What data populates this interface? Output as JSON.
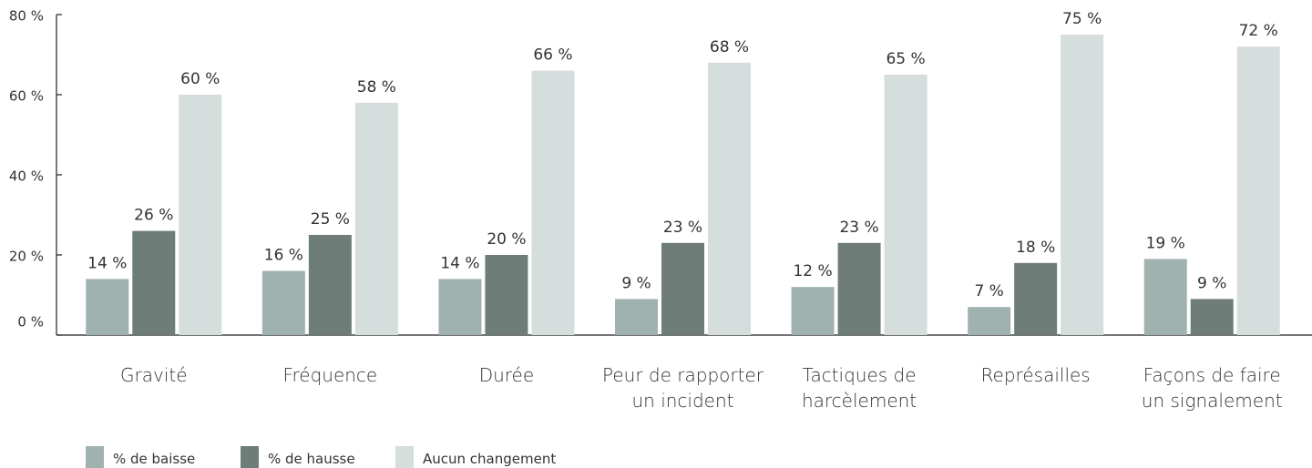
{
  "chart_data": {
    "type": "bar",
    "categories": [
      "Gravité",
      "Fréquence",
      "Durée",
      "Peur de rapporter\nun incident",
      "Tactiques de\nharcèlement",
      "Représailles",
      "Façons de faire\nun signalement"
    ],
    "series": [
      {
        "name": "% de baisse",
        "color": "#a0b2b0",
        "values": [
          14,
          16,
          14,
          9,
          12,
          7,
          19
        ],
        "value_labels": [
          "14 %",
          "16 %",
          "14 %",
          "9 %",
          "12 %",
          "7 %",
          "19 %"
        ]
      },
      {
        "name": "% de hausse",
        "color": "#6e7d78",
        "values": [
          26,
          25,
          20,
          23,
          23,
          18,
          9
        ],
        "value_labels": [
          "26 %",
          "25 %",
          "20 %",
          "23 %",
          "23 %",
          "18 %",
          "9 %"
        ]
      },
      {
        "name": "Aucun changement",
        "color": "#d5dedd",
        "values": [
          60,
          58,
          66,
          68,
          65,
          75,
          72
        ],
        "value_labels": [
          "60 %",
          "58 %",
          "66 %",
          "68 %",
          "65 %",
          "75 %",
          "72 %"
        ]
      }
    ],
    "ylim": [
      0,
      80
    ],
    "yticks": [
      {
        "value": 0,
        "label": "0 %"
      },
      {
        "value": 20,
        "label": "20 %"
      },
      {
        "value": 40,
        "label": "40 %"
      },
      {
        "value": 60,
        "label": "60 %"
      },
      {
        "value": 80,
        "label": "80 %"
      }
    ],
    "grid": false,
    "legend": "bottom-left"
  }
}
